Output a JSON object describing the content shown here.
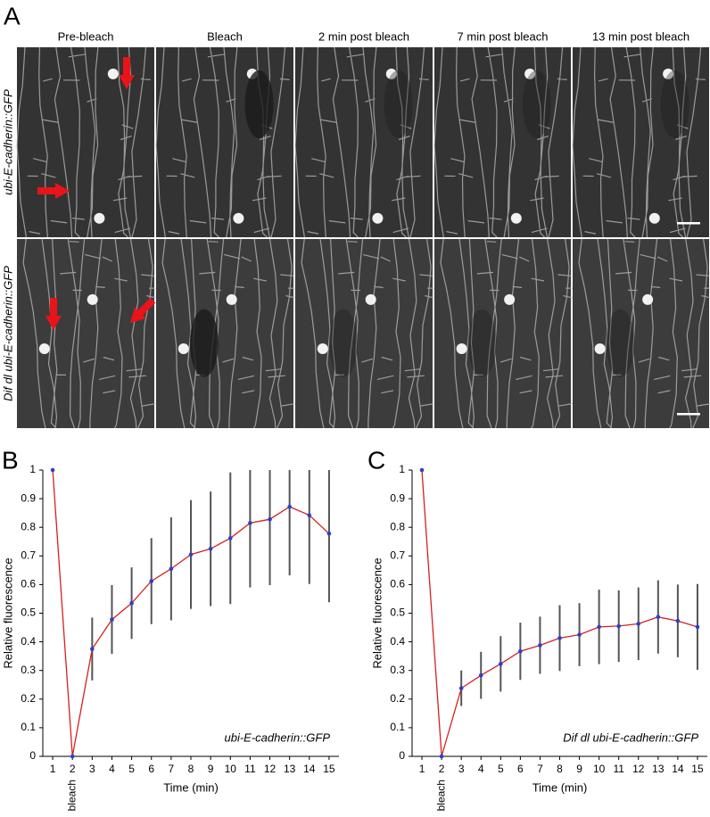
{
  "figure": {
    "label": "A",
    "columns": [
      "Pre-bleach",
      "Bleach",
      "2 min post bleach",
      "7 min post bleach",
      "13 min post bleach"
    ],
    "rows": [
      "ubi-E-cadherin::GFP",
      "Dif dl ubi-E-cadherin::GFP"
    ]
  },
  "chart_data": [
    {
      "type": "line",
      "panel": "B",
      "annotation": "ubi-E-cadherin::GFP",
      "x_label": "Time (min)",
      "y_label": "Relative fluorescence",
      "bleach_label": "bleach",
      "categories": [
        "1",
        "2",
        "3",
        "4",
        "5",
        "6",
        "7",
        "8",
        "9",
        "10",
        "11",
        "12",
        "13",
        "14",
        "15"
      ],
      "series": [
        {
          "color": "#d62020",
          "marker_color": "#2a3fd0",
          "values": [
            1,
            0,
            0.375,
            0.478,
            0.535,
            0.612,
            0.655,
            0.705,
            0.725,
            0.762,
            0.815,
            0.828,
            0.872,
            0.842,
            0.778
          ],
          "errors": [
            0,
            0,
            0.11,
            0.12,
            0.125,
            0.15,
            0.18,
            0.19,
            0.2,
            0.23,
            0.225,
            0.23,
            0.24,
            0.24,
            0.24
          ]
        }
      ],
      "ylim": [
        0,
        1
      ],
      "yticks": [
        0,
        0.1,
        0.2,
        0.3,
        0.4,
        0.5,
        0.6,
        0.7,
        0.8,
        0.9,
        1
      ]
    },
    {
      "type": "line",
      "panel": "C",
      "annotation": "Dif dl ubi-E-cadherin::GFP",
      "x_label": "Time (min)",
      "y_label": "Relative fluorescence",
      "bleach_label": "bleach",
      "categories": [
        "1",
        "2",
        "3",
        "4",
        "5",
        "6",
        "7",
        "8",
        "9",
        "10",
        "11",
        "12",
        "13",
        "14",
        "15"
      ],
      "series": [
        {
          "color": "#d62020",
          "marker_color": "#2a3fd0",
          "values": [
            1,
            0,
            0.238,
            0.283,
            0.323,
            0.367,
            0.388,
            0.413,
            0.425,
            0.452,
            0.455,
            0.463,
            0.487,
            0.473,
            0.452
          ],
          "errors": [
            0,
            0,
            0.062,
            0.082,
            0.097,
            0.1,
            0.1,
            0.115,
            0.11,
            0.13,
            0.125,
            0.127,
            0.128,
            0.127,
            0.15
          ]
        }
      ],
      "ylim": [
        0,
        1
      ],
      "yticks": [
        0,
        0.1,
        0.2,
        0.3,
        0.4,
        0.5,
        0.6,
        0.7,
        0.8,
        0.9,
        1
      ]
    }
  ]
}
